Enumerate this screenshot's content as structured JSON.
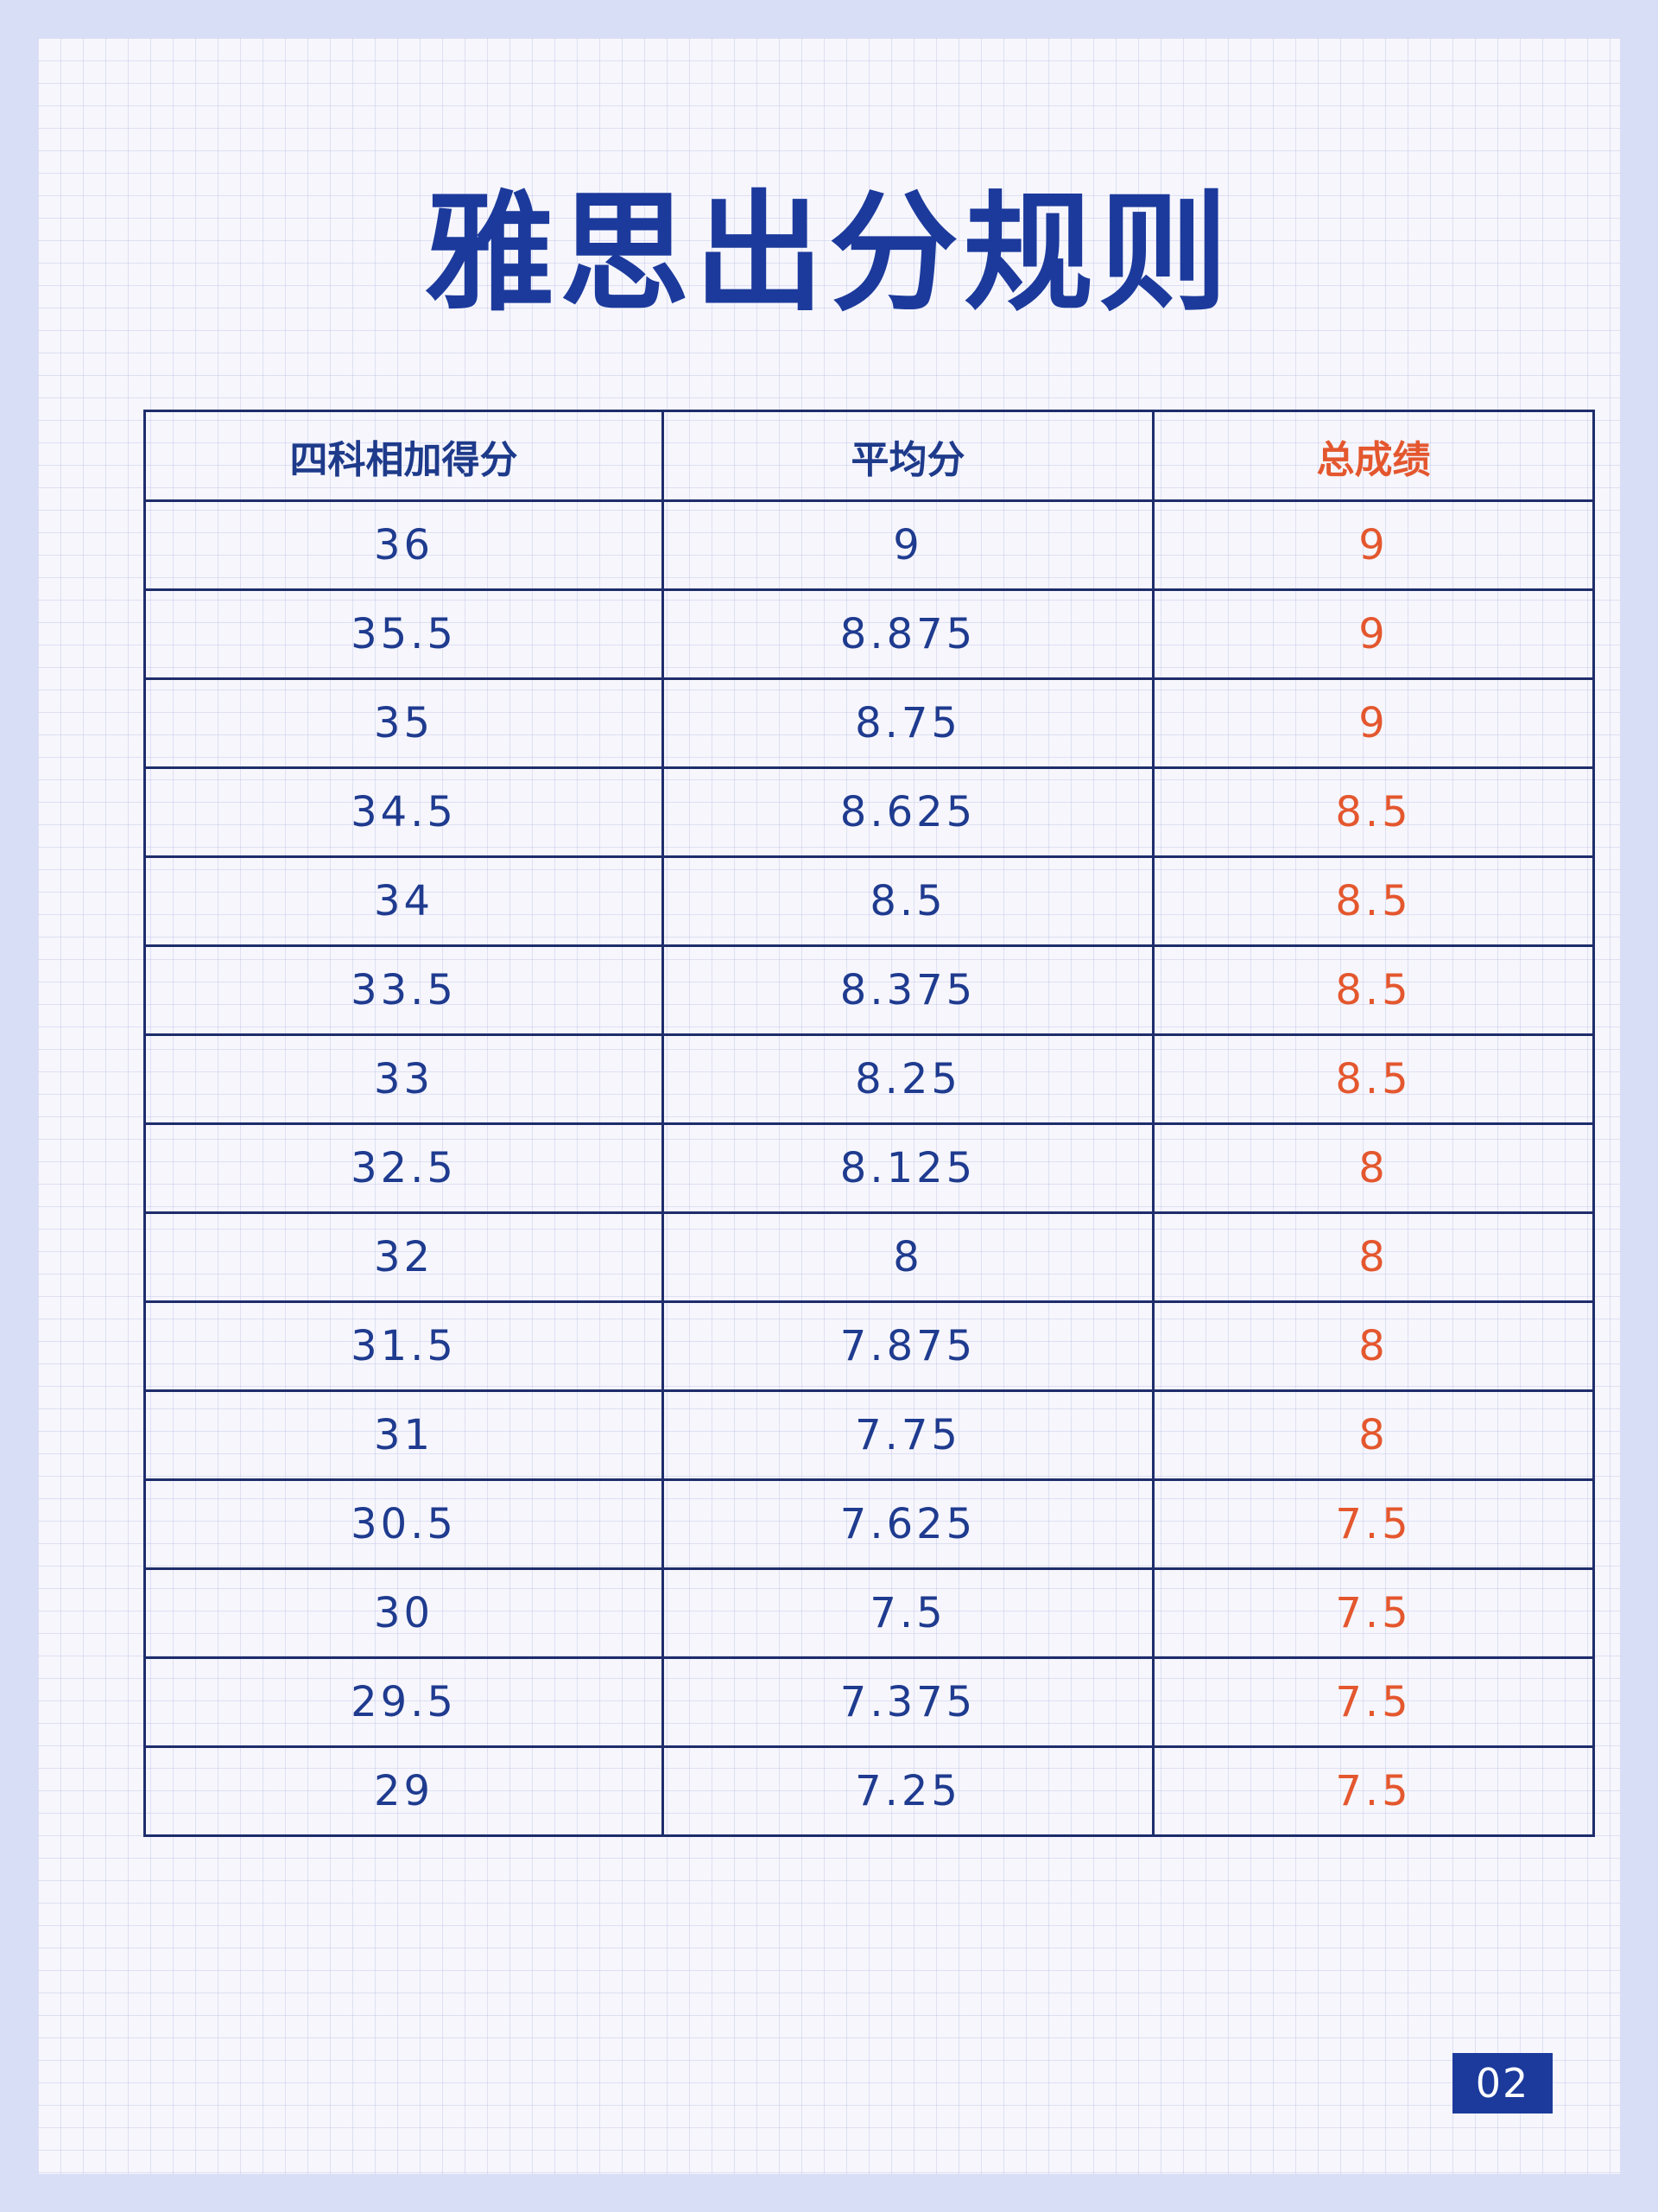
{
  "page": {
    "title": "雅思出分规则",
    "page_number": "02"
  },
  "colors": {
    "primary_blue": "#1c3a9c",
    "accent_orange": "#e4572e",
    "border_navy": "#1e2d6b",
    "background": "#d9def7"
  },
  "table": {
    "headers": [
      "四科相加得分",
      "平均分",
      "总成绩"
    ],
    "rows": [
      [
        "36",
        "9",
        "9"
      ],
      [
        "35.5",
        "8.875",
        "9"
      ],
      [
        "35",
        "8.75",
        "9"
      ],
      [
        "34.5",
        "8.625",
        "8.5"
      ],
      [
        "34",
        "8.5",
        "8.5"
      ],
      [
        "33.5",
        "8.375",
        "8.5"
      ],
      [
        "33",
        "8.25",
        "8.5"
      ],
      [
        "32.5",
        "8.125",
        "8"
      ],
      [
        "32",
        "8",
        "8"
      ],
      [
        "31.5",
        "7.875",
        "8"
      ],
      [
        "31",
        "7.75",
        "8"
      ],
      [
        "30.5",
        "7.625",
        "7.5"
      ],
      [
        "30",
        "7.5",
        "7.5"
      ],
      [
        "29.5",
        "7.375",
        "7.5"
      ],
      [
        "29",
        "7.25",
        "7.5"
      ]
    ]
  }
}
